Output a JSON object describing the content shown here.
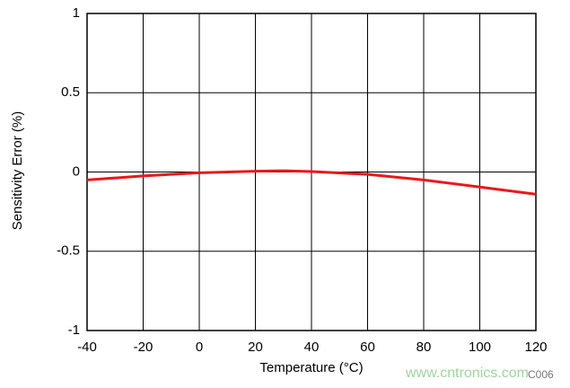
{
  "chart_data": {
    "type": "line",
    "x_label": "Temperature (°C)",
    "y_label": "Sensitivity Error (%)",
    "x": [
      -40,
      -20,
      0,
      20,
      30,
      40,
      60,
      80,
      100,
      120
    ],
    "series": [
      {
        "name": "Sensitivity Error",
        "color": "#e8191b",
        "values": [
          -0.05,
          -0.025,
          -0.005,
          0.005,
          0.008,
          0.003,
          -0.015,
          -0.05,
          -0.095,
          -0.14
        ]
      }
    ],
    "xlim": [
      -40,
      120
    ],
    "xticks": [
      -40,
      -20,
      0,
      20,
      40,
      60,
      80,
      100,
      120
    ],
    "ylim": [
      -1,
      1
    ],
    "yticks": [
      -1,
      -0.5,
      0,
      0.5,
      1
    ],
    "grid": true,
    "watermark": "www.cntronics.com",
    "figure_code": "C006"
  }
}
